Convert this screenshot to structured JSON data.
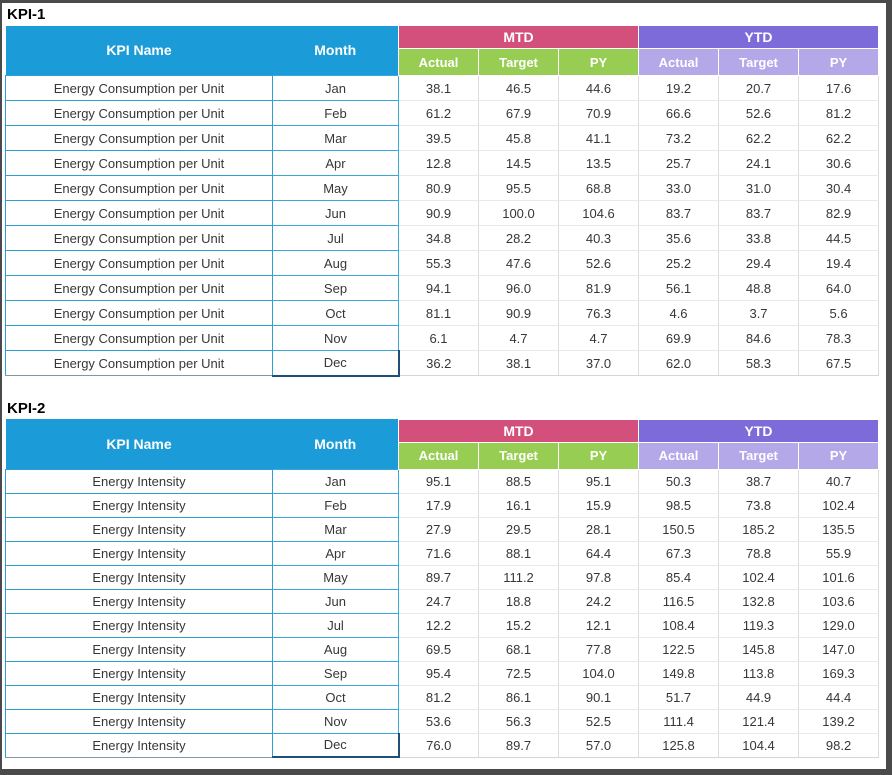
{
  "colors": {
    "header_blue": "#1B9BD7",
    "mtd_pink": "#D3507C",
    "sub_green": "#98CD53",
    "ytd_purple": "#7D6BD9",
    "sub_lavender": "#B4A8E8",
    "grid_blue": "#2E9FD6",
    "month_border": "#38A8D8",
    "num_border_v": "#DFD9DE",
    "num_border_h": "#EDE7EB",
    "dark_border": "#1F4E79",
    "frame": "#4A4A4A"
  },
  "tables": [
    {
      "title": "KPI-1",
      "kpi_name": "Energy Consumption per Unit",
      "headers": {
        "kpi_name": "KPI Name",
        "month": "Month",
        "mtd": "MTD",
        "ytd": "YTD",
        "sub_actual": "Actual",
        "sub_target": "Target",
        "sub_py": "PY"
      },
      "rows": [
        {
          "month": "Jan",
          "mtd": [
            "38.1",
            "46.5",
            "44.6"
          ],
          "ytd": [
            "19.2",
            "20.7",
            "17.6"
          ]
        },
        {
          "month": "Feb",
          "mtd": [
            "61.2",
            "67.9",
            "70.9"
          ],
          "ytd": [
            "66.6",
            "52.6",
            "81.2"
          ]
        },
        {
          "month": "Mar",
          "mtd": [
            "39.5",
            "45.8",
            "41.1"
          ],
          "ytd": [
            "73.2",
            "62.2",
            "62.2"
          ]
        },
        {
          "month": "Apr",
          "mtd": [
            "12.8",
            "14.5",
            "13.5"
          ],
          "ytd": [
            "25.7",
            "24.1",
            "30.6"
          ]
        },
        {
          "month": "May",
          "mtd": [
            "80.9",
            "95.5",
            "68.8"
          ],
          "ytd": [
            "33.0",
            "31.0",
            "30.4"
          ]
        },
        {
          "month": "Jun",
          "mtd": [
            "90.9",
            "100.0",
            "104.6"
          ],
          "ytd": [
            "83.7",
            "83.7",
            "82.9"
          ]
        },
        {
          "month": "Jul",
          "mtd": [
            "34.8",
            "28.2",
            "40.3"
          ],
          "ytd": [
            "35.6",
            "33.8",
            "44.5"
          ]
        },
        {
          "month": "Aug",
          "mtd": [
            "55.3",
            "47.6",
            "52.6"
          ],
          "ytd": [
            "25.2",
            "29.4",
            "19.4"
          ]
        },
        {
          "month": "Sep",
          "mtd": [
            "94.1",
            "96.0",
            "81.9"
          ],
          "ytd": [
            "56.1",
            "48.8",
            "64.0"
          ]
        },
        {
          "month": "Oct",
          "mtd": [
            "81.1",
            "90.9",
            "76.3"
          ],
          "ytd": [
            "4.6",
            "3.7",
            "5.6"
          ]
        },
        {
          "month": "Nov",
          "mtd": [
            "6.1",
            "4.7",
            "4.7"
          ],
          "ytd": [
            "69.9",
            "84.6",
            "78.3"
          ]
        },
        {
          "month": "Dec",
          "mtd": [
            "36.2",
            "38.1",
            "37.0"
          ],
          "ytd": [
            "62.0",
            "58.3",
            "67.5"
          ]
        }
      ]
    },
    {
      "title": "KPI-2",
      "kpi_name": "Energy Intensity",
      "headers": {
        "kpi_name": "KPI Name",
        "month": "Month",
        "mtd": "MTD",
        "ytd": "YTD",
        "sub_actual": "Actual",
        "sub_target": "Target",
        "sub_py": "PY"
      },
      "rows": [
        {
          "month": "Jan",
          "mtd": [
            "95.1",
            "88.5",
            "95.1"
          ],
          "ytd": [
            "50.3",
            "38.7",
            "40.7"
          ]
        },
        {
          "month": "Feb",
          "mtd": [
            "17.9",
            "16.1",
            "15.9"
          ],
          "ytd": [
            "98.5",
            "73.8",
            "102.4"
          ]
        },
        {
          "month": "Mar",
          "mtd": [
            "27.9",
            "29.5",
            "28.1"
          ],
          "ytd": [
            "150.5",
            "185.2",
            "135.5"
          ]
        },
        {
          "month": "Apr",
          "mtd": [
            "71.6",
            "88.1",
            "64.4"
          ],
          "ytd": [
            "67.3",
            "78.8",
            "55.9"
          ]
        },
        {
          "month": "May",
          "mtd": [
            "89.7",
            "111.2",
            "97.8"
          ],
          "ytd": [
            "85.4",
            "102.4",
            "101.6"
          ]
        },
        {
          "month": "Jun",
          "mtd": [
            "24.7",
            "18.8",
            "24.2"
          ],
          "ytd": [
            "116.5",
            "132.8",
            "103.6"
          ]
        },
        {
          "month": "Jul",
          "mtd": [
            "12.2",
            "15.2",
            "12.1"
          ],
          "ytd": [
            "108.4",
            "119.3",
            "129.0"
          ]
        },
        {
          "month": "Aug",
          "mtd": [
            "69.5",
            "68.1",
            "77.8"
          ],
          "ytd": [
            "122.5",
            "145.8",
            "147.0"
          ]
        },
        {
          "month": "Sep",
          "mtd": [
            "95.4",
            "72.5",
            "104.0"
          ],
          "ytd": [
            "149.8",
            "113.8",
            "169.3"
          ]
        },
        {
          "month": "Oct",
          "mtd": [
            "81.2",
            "86.1",
            "90.1"
          ],
          "ytd": [
            "51.7",
            "44.9",
            "44.4"
          ]
        },
        {
          "month": "Nov",
          "mtd": [
            "53.6",
            "56.3",
            "52.5"
          ],
          "ytd": [
            "111.4",
            "121.4",
            "139.2"
          ]
        },
        {
          "month": "Dec",
          "mtd": [
            "76.0",
            "89.7",
            "57.0"
          ],
          "ytd": [
            "125.8",
            "104.4",
            "98.2"
          ]
        }
      ]
    }
  ]
}
